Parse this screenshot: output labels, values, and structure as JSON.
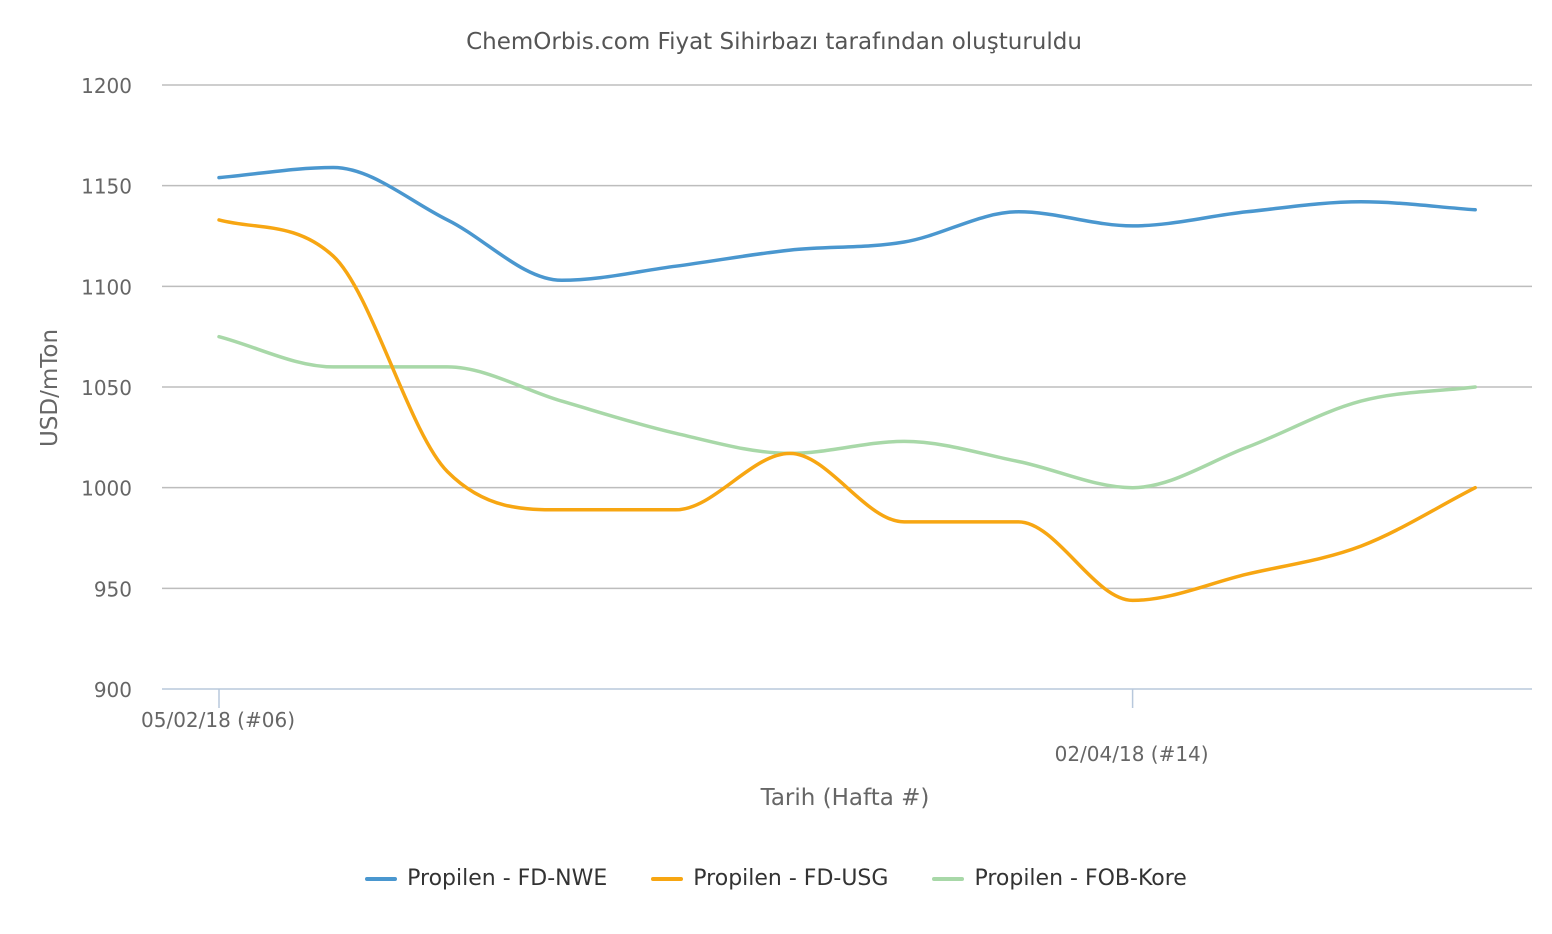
{
  "chart_data": {
    "type": "line",
    "title": "ChemOrbis.com Fiyat Sihirbazı tarafından oluşturuldu",
    "xlabel": "Tarih (Hafta #)",
    "ylabel": "USD/mTon",
    "x_tick_labels": [
      {
        "label": "05/02/18 (#06)",
        "index": 0
      },
      {
        "label": "02/04/18 (#14)",
        "index": 8
      }
    ],
    "yticks": [
      900,
      950,
      1000,
      1050,
      1100,
      1150,
      1200
    ],
    "ylim": [
      900,
      1200
    ],
    "grid": true,
    "legend_position": "bottom",
    "x": [
      0,
      1,
      2,
      3,
      4,
      5,
      6,
      7,
      8,
      9,
      10,
      11
    ],
    "series": [
      {
        "name": "Propilen - FD-NWE",
        "color": "#4a97cf",
        "values": [
          1154,
          1159,
          1133,
          1103,
          1110,
          1118,
          1122,
          1137,
          1130,
          1137,
          1142,
          1138
        ]
      },
      {
        "name": "Propilen - FD-USG",
        "color": "#f7a612",
        "values": [
          1133,
          1115,
          1008,
          989,
          989,
          1017,
          983,
          983,
          944,
          957,
          971,
          1000
        ]
      },
      {
        "name": "Propilen - FOB-Kore",
        "color": "#a8d8a8",
        "values": [
          1075,
          1060,
          1060,
          1043,
          1027,
          1017,
          1023,
          1013,
          1000,
          1020,
          1043,
          1050
        ]
      }
    ]
  }
}
